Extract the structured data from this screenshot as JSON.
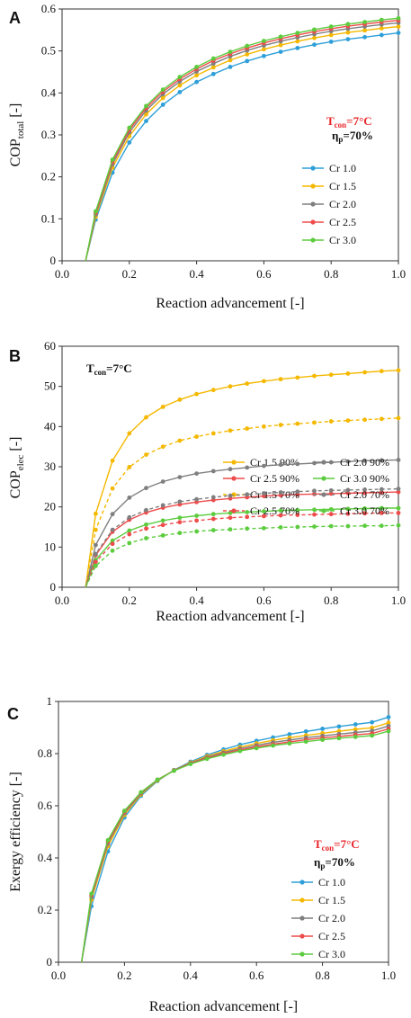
{
  "chart_data": [
    {
      "panel": "A",
      "type": "line",
      "xlabel": "Reaction advancement [-]",
      "ylabel": {
        "main": "COP",
        "sub": "total",
        "suffix": " [-]"
      },
      "xlim": [
        0,
        1.0
      ],
      "ylim": [
        0,
        0.6
      ],
      "x_ticks": [
        "0.0",
        "0.2",
        "0.4",
        "0.6",
        "0.8",
        "1.0"
      ],
      "y_ticks": [
        "0",
        "0.1",
        "0.2",
        "0.3",
        "0.4",
        "0.5",
        "0.6"
      ],
      "x_tick_values": [
        0,
        0.2,
        0.4,
        0.6,
        0.8,
        1.0
      ],
      "y_tick_values": [
        0,
        0.1,
        0.2,
        0.3,
        0.4,
        0.5,
        0.6
      ],
      "annotations": [
        {
          "main": "T",
          "sub": "con",
          "rest": "=7°C",
          "color": "#e8262a"
        },
        {
          "main": "η",
          "sub": "p",
          "rest": "=70%",
          "color": "#111111"
        }
      ],
      "x": [
        0.07,
        0.1,
        0.15,
        0.2,
        0.25,
        0.3,
        0.35,
        0.4,
        0.45,
        0.5,
        0.55,
        0.6,
        0.65,
        0.7,
        0.75,
        0.8,
        0.85,
        0.9,
        0.95,
        1.0
      ],
      "series": [
        {
          "name": "Cr 1.0",
          "color": "#2e9fd8",
          "dashed": false,
          "values": [
            0,
            0.098,
            0.21,
            0.282,
            0.333,
            0.372,
            0.402,
            0.426,
            0.445,
            0.462,
            0.476,
            0.488,
            0.498,
            0.507,
            0.515,
            0.522,
            0.528,
            0.533,
            0.538,
            0.543
          ]
        },
        {
          "name": "Cr 1.5",
          "color": "#f5b800",
          "dashed": false,
          "values": [
            0,
            0.105,
            0.222,
            0.297,
            0.349,
            0.388,
            0.418,
            0.442,
            0.461,
            0.478,
            0.492,
            0.504,
            0.514,
            0.523,
            0.531,
            0.538,
            0.544,
            0.549,
            0.554,
            0.558
          ]
        },
        {
          "name": "Cr 2.0",
          "color": "#7f7f7f",
          "dashed": false,
          "values": [
            0,
            0.11,
            0.23,
            0.306,
            0.358,
            0.397,
            0.427,
            0.451,
            0.47,
            0.487,
            0.501,
            0.513,
            0.523,
            0.532,
            0.54,
            0.547,
            0.553,
            0.558,
            0.563,
            0.567
          ]
        },
        {
          "name": "Cr 2.5",
          "color": "#ee4b4b",
          "dashed": false,
          "values": [
            0,
            0.114,
            0.236,
            0.312,
            0.364,
            0.403,
            0.433,
            0.457,
            0.477,
            0.493,
            0.507,
            0.519,
            0.529,
            0.538,
            0.546,
            0.553,
            0.559,
            0.564,
            0.569,
            0.573
          ]
        },
        {
          "name": "Cr 3.0",
          "color": "#5ccc3e",
          "dashed": false,
          "values": [
            0,
            0.118,
            0.241,
            0.317,
            0.369,
            0.408,
            0.438,
            0.462,
            0.482,
            0.498,
            0.512,
            0.524,
            0.534,
            0.543,
            0.551,
            0.558,
            0.564,
            0.569,
            0.574,
            0.578
          ]
        }
      ]
    },
    {
      "panel": "B",
      "type": "line",
      "xlabel": "Reaction advancement [-]",
      "ylabel": {
        "main": "COP",
        "sub": "elec",
        "suffix": " [-]"
      },
      "xlim": [
        0,
        1.0
      ],
      "ylim": [
        0,
        60
      ],
      "x_ticks": [
        "0.0",
        "0.2",
        "0.4",
        "0.6",
        "0.8",
        "1.0"
      ],
      "y_ticks": [
        "0",
        "10",
        "20",
        "30",
        "40",
        "50",
        "60"
      ],
      "x_tick_values": [
        0,
        0.2,
        0.4,
        0.6,
        0.8,
        1.0
      ],
      "y_tick_values": [
        0,
        10,
        20,
        30,
        40,
        50,
        60
      ],
      "annotations": [
        {
          "main": "T",
          "sub": "con",
          "rest": "=7°C",
          "color": "#111111"
        }
      ],
      "x": [
        0.07,
        0.1,
        0.15,
        0.2,
        0.25,
        0.3,
        0.35,
        0.4,
        0.45,
        0.5,
        0.55,
        0.6,
        0.65,
        0.7,
        0.75,
        0.8,
        0.85,
        0.9,
        0.95,
        1.0
      ],
      "series": [
        {
          "name": "Cr 1.5 90%",
          "color": "#f5b800",
          "dashed": false,
          "values": [
            0,
            18.3,
            31.5,
            38.3,
            42.3,
            44.9,
            46.7,
            48.1,
            49.1,
            50.0,
            50.7,
            51.3,
            51.8,
            52.2,
            52.6,
            52.9,
            53.2,
            53.5,
            53.8,
            54.0
          ]
        },
        {
          "name": "Cr 2.0 90%",
          "color": "#7f7f7f",
          "dashed": false,
          "values": [
            0,
            10.5,
            18.2,
            22.3,
            24.7,
            26.3,
            27.4,
            28.3,
            28.9,
            29.4,
            29.8,
            30.2,
            30.5,
            30.7,
            30.9,
            31.1,
            31.3,
            31.5,
            31.6,
            31.7
          ]
        },
        {
          "name": "Cr 2.5 90%",
          "color": "#ee4b4b",
          "dashed": false,
          "values": [
            0,
            8.0,
            13.8,
            16.8,
            18.6,
            19.8,
            20.6,
            21.2,
            21.7,
            22.1,
            22.4,
            22.7,
            22.9,
            23.1,
            23.2,
            23.3,
            23.4,
            23.5,
            23.6,
            23.7
          ]
        },
        {
          "name": "Cr 3.0 90%",
          "color": "#5ccc3e",
          "dashed": false,
          "values": [
            0,
            6.8,
            11.6,
            14.1,
            15.6,
            16.6,
            17.3,
            17.8,
            18.2,
            18.5,
            18.7,
            18.9,
            19.1,
            19.2,
            19.3,
            19.4,
            19.5,
            19.6,
            19.7,
            19.7
          ]
        },
        {
          "name": "Cr 1.5 70%",
          "color": "#f5b800",
          "dashed": true,
          "values": [
            0,
            14.3,
            24.6,
            29.9,
            33.0,
            35.0,
            36.5,
            37.5,
            38.3,
            39.0,
            39.5,
            40.0,
            40.4,
            40.7,
            41.0,
            41.3,
            41.5,
            41.7,
            41.9,
            42.1
          ]
        },
        {
          "name": "Cr 2.0 70%",
          "color": "#7f7f7f",
          "dashed": true,
          "values": [
            0,
            8.3,
            14.3,
            17.4,
            19.2,
            20.4,
            21.3,
            21.9,
            22.4,
            22.8,
            23.1,
            23.4,
            23.6,
            23.8,
            24.0,
            24.1,
            24.2,
            24.3,
            24.4,
            24.5
          ]
        },
        {
          "name": "Cr 2.5 70%",
          "color": "#ee4b4b",
          "dashed": true,
          "values": [
            0,
            6.3,
            10.8,
            13.2,
            14.6,
            15.5,
            16.2,
            16.6,
            17.0,
            17.3,
            17.5,
            17.7,
            17.9,
            18.0,
            18.1,
            18.2,
            18.3,
            18.4,
            18.5,
            18.5
          ]
        },
        {
          "name": "Cr 3.0 70%",
          "color": "#5ccc3e",
          "dashed": true,
          "values": [
            0,
            5.3,
            9.1,
            11.0,
            12.2,
            12.9,
            13.5,
            13.9,
            14.2,
            14.4,
            14.6,
            14.7,
            14.9,
            15.0,
            15.1,
            15.2,
            15.2,
            15.3,
            15.3,
            15.4
          ]
        }
      ]
    },
    {
      "panel": "C",
      "type": "line",
      "xlabel": "Reaction advancement [-]",
      "ylabel": {
        "main": "Exergy efficiency",
        "sub": "",
        "suffix": " [-]"
      },
      "xlim": [
        0,
        1.0
      ],
      "ylim": [
        0,
        1
      ],
      "x_ticks": [
        "0.0",
        "0.2",
        "0.4",
        "0.6",
        "0.8",
        "1.0"
      ],
      "y_ticks": [
        "0",
        "0.2",
        "0.4",
        "0.6",
        "0.8",
        "1"
      ],
      "x_tick_values": [
        0,
        0.2,
        0.4,
        0.6,
        0.8,
        1.0
      ],
      "y_tick_values": [
        0,
        0.2,
        0.4,
        0.6,
        0.8,
        1.0
      ],
      "annotations": [
        {
          "main": "T",
          "sub": "con",
          "rest": "=7°C",
          "color": "#e8262a"
        },
        {
          "main": "η",
          "sub": "p",
          "rest": "=70%",
          "color": "#111111"
        }
      ],
      "x": [
        0.07,
        0.1,
        0.15,
        0.2,
        0.25,
        0.3,
        0.35,
        0.4,
        0.45,
        0.5,
        0.55,
        0.6,
        0.65,
        0.7,
        0.75,
        0.8,
        0.85,
        0.9,
        0.95,
        1.0
      ],
      "series": [
        {
          "name": "Cr 1.0",
          "color": "#2e9fd8",
          "dashed": false,
          "values": [
            0,
            0.215,
            0.425,
            0.555,
            0.638,
            0.695,
            0.737,
            0.769,
            0.795,
            0.816,
            0.834,
            0.849,
            0.862,
            0.874,
            0.885,
            0.895,
            0.904,
            0.912,
            0.92,
            0.94
          ]
        },
        {
          "name": "Cr 1.5",
          "color": "#f5b800",
          "dashed": false,
          "values": [
            0,
            0.24,
            0.445,
            0.565,
            0.643,
            0.697,
            0.736,
            0.766,
            0.79,
            0.809,
            0.825,
            0.839,
            0.851,
            0.861,
            0.87,
            0.878,
            0.886,
            0.893,
            0.899,
            0.918
          ]
        },
        {
          "name": "Cr 2.0",
          "color": "#7f7f7f",
          "dashed": false,
          "values": [
            0,
            0.25,
            0.455,
            0.572,
            0.647,
            0.699,
            0.736,
            0.764,
            0.786,
            0.804,
            0.819,
            0.832,
            0.843,
            0.852,
            0.861,
            0.868,
            0.875,
            0.881,
            0.887,
            0.906
          ]
        },
        {
          "name": "Cr 2.5",
          "color": "#ee4b4b",
          "dashed": false,
          "values": [
            0,
            0.257,
            0.462,
            0.577,
            0.65,
            0.7,
            0.735,
            0.762,
            0.783,
            0.8,
            0.814,
            0.826,
            0.836,
            0.845,
            0.853,
            0.86,
            0.866,
            0.872,
            0.877,
            0.895
          ]
        },
        {
          "name": "Cr 3.0",
          "color": "#5ccc3e",
          "dashed": false,
          "values": [
            0,
            0.263,
            0.468,
            0.581,
            0.652,
            0.7,
            0.734,
            0.76,
            0.78,
            0.796,
            0.81,
            0.821,
            0.831,
            0.839,
            0.846,
            0.853,
            0.859,
            0.864,
            0.869,
            0.886
          ]
        }
      ]
    }
  ]
}
